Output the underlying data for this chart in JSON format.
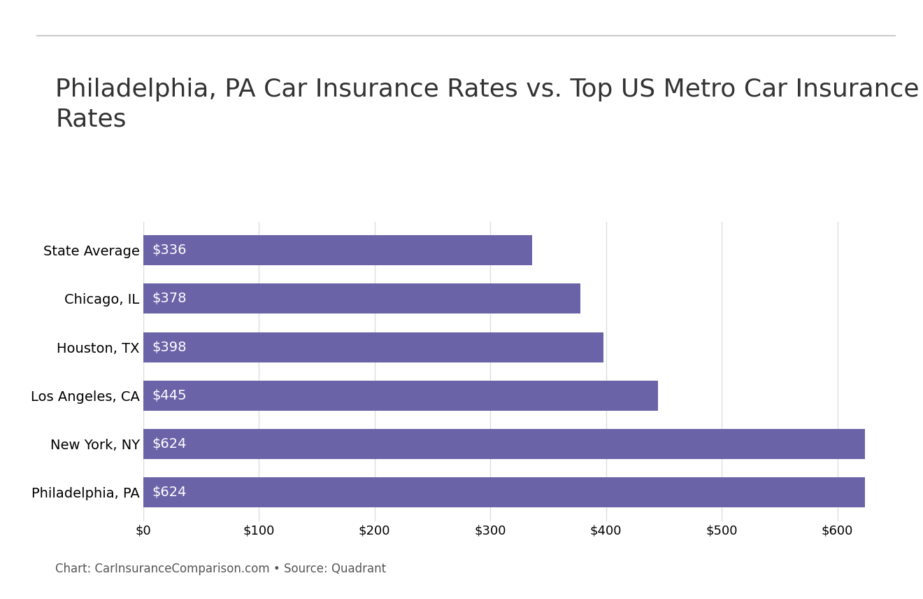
{
  "title": "Philadelphia, PA Car Insurance Rates vs. Top US Metro Car Insurance\nRates",
  "categories": [
    "State Average",
    "Chicago, IL",
    "Houston, TX",
    "Los Angeles, CA",
    "New York, NY",
    "Philadelphia, PA"
  ],
  "values": [
    336,
    378,
    398,
    445,
    624,
    624
  ],
  "bar_color": "#6B63A8",
  "label_color": "#FFFFFF",
  "xlim": [
    0,
    650
  ],
  "xtick_values": [
    0,
    100,
    200,
    300,
    400,
    500,
    600
  ],
  "xtick_labels": [
    "$0",
    "$100",
    "$200",
    "$300",
    "$400",
    "$500",
    "$600"
  ],
  "title_fontsize": 26,
  "tick_fontsize": 13,
  "label_fontsize": 14,
  "ytick_fontsize": 14,
  "caption": "Chart: CarInsuranceComparison.com • Source: Quadrant",
  "caption_fontsize": 12,
  "background_color": "#FFFFFF",
  "top_line_color": "#CCCCCC",
  "bar_height": 0.62,
  "grid_color": "#DDDDDD"
}
